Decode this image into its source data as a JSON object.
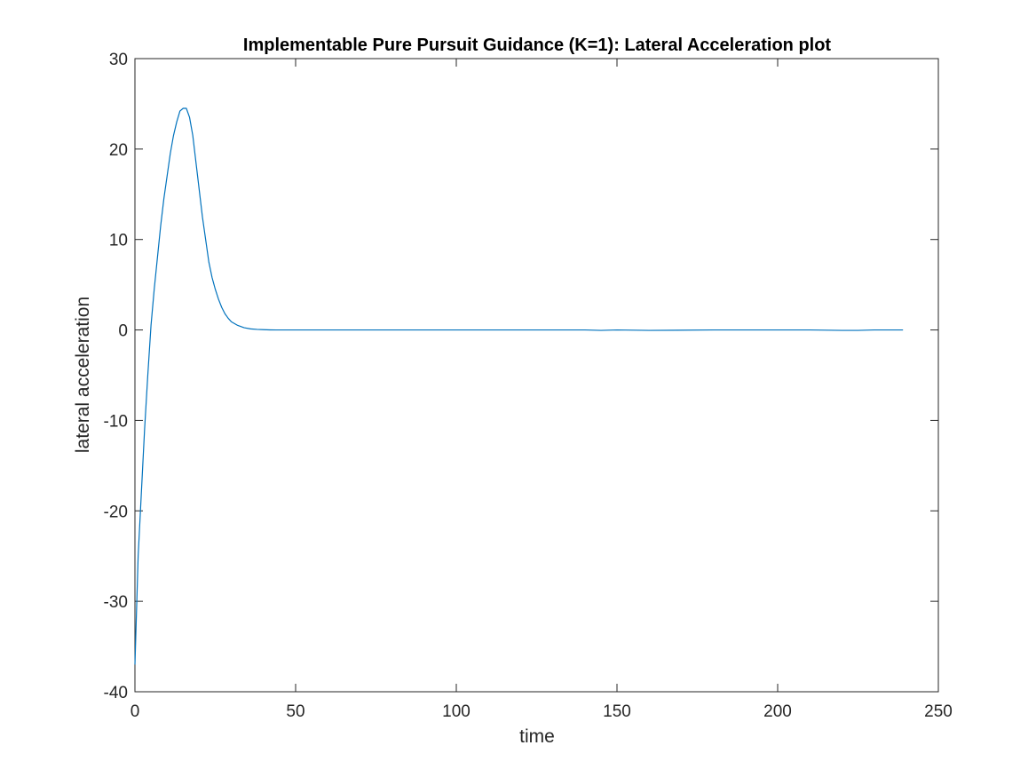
{
  "chart_data": {
    "type": "line",
    "title": "Implementable Pure Pursuit Guidance (K=1): Lateral Acceleration plot",
    "xlabel": "time",
    "ylabel": "lateral acceleration",
    "xlim": [
      0,
      250
    ],
    "ylim": [
      -40,
      30
    ],
    "xticks": [
      "0",
      "50",
      "100",
      "150",
      "200",
      "250"
    ],
    "yticks": [
      "-40",
      "-30",
      "-20",
      "-10",
      "0",
      "10",
      "20",
      "30"
    ],
    "grid": false,
    "legend": "none",
    "series": [
      {
        "color": "#0072BD",
        "x": [
          0,
          1,
          2,
          3,
          4,
          5,
          6,
          7,
          8,
          9,
          10,
          11,
          12,
          13,
          14,
          15,
          16,
          17,
          18,
          19,
          20,
          21,
          22,
          23,
          24,
          25,
          26,
          27,
          28,
          29,
          30,
          32,
          34,
          36,
          38,
          40,
          42,
          44,
          46,
          48,
          50,
          55,
          60,
          70,
          80,
          100,
          120,
          140,
          145,
          150,
          160,
          180,
          200,
          210,
          220,
          225,
          230,
          239
        ],
        "y": [
          -37,
          -25,
          -18,
          -11,
          -5,
          0.5,
          4.5,
          8,
          11.5,
          14.5,
          17,
          19.5,
          21.5,
          23,
          24.2,
          24.5,
          24.5,
          23.5,
          21.5,
          18.5,
          15.5,
          12.5,
          10,
          7.5,
          5.8,
          4.5,
          3.4,
          2.5,
          1.8,
          1.3,
          0.9,
          0.5,
          0.25,
          0.12,
          0.06,
          0.03,
          0.01,
          0.0,
          0.0,
          0.0,
          0.0,
          0.0,
          0.0,
          0.0,
          0.0,
          0.0,
          0.0,
          0.0,
          -0.05,
          0.0,
          -0.05,
          0.0,
          0.0,
          0.0,
          -0.05,
          -0.05,
          0.0,
          0.0
        ]
      }
    ]
  }
}
